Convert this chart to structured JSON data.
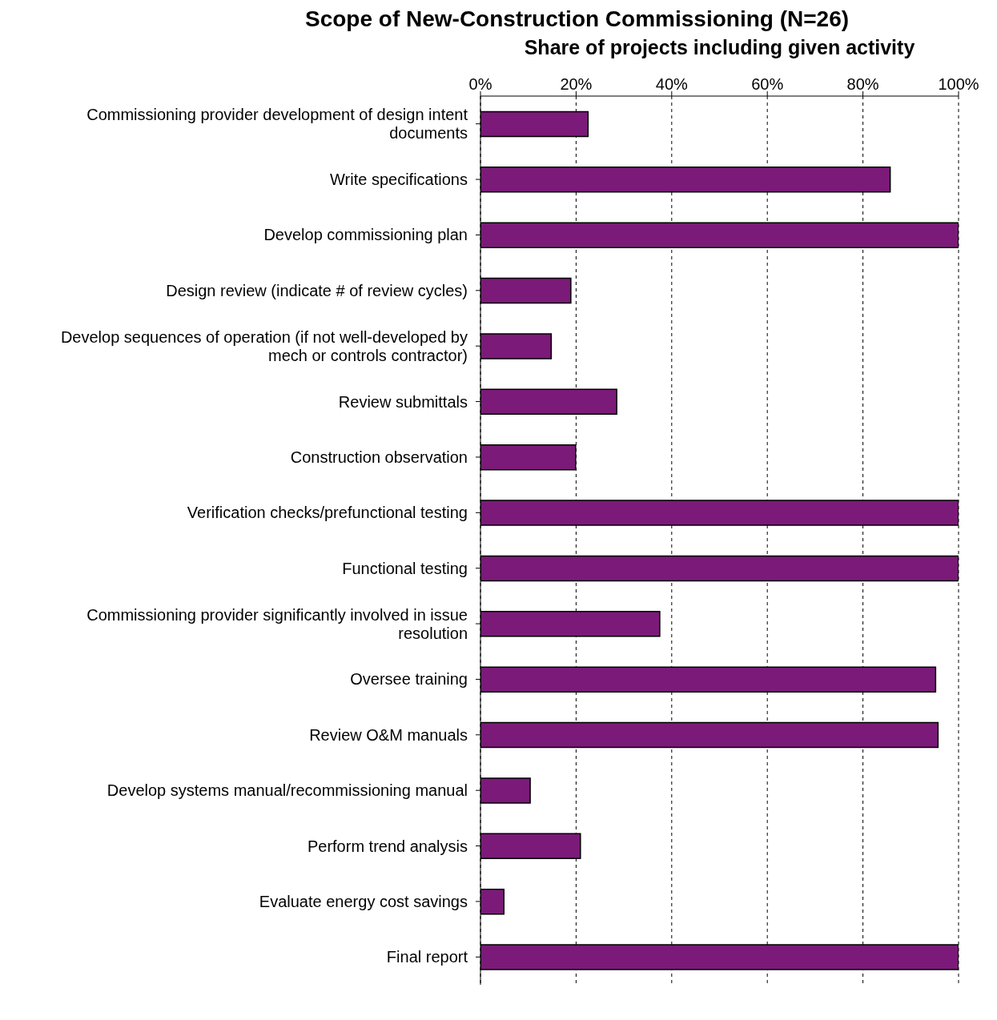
{
  "chart_data": {
    "type": "bar",
    "orientation": "horizontal",
    "title": "Scope of New-Construction Commissioning (N=26)",
    "xlabel": "Share of projects including given activity",
    "categories": [
      "Commissioning provider development of design intent documents",
      "Write specifications",
      "Develop commissioning plan",
      "Design review (indicate # of review cycles)",
      "Develop sequences of operation (if not well-developed by mech or controls contractor)",
      "Review submittals",
      "Construction observation",
      "Verification checks/prefunctional testing",
      "Functional testing",
      "Commissioning provider significantly involved in issue resolution",
      "Oversee training",
      "Review O&M manuals",
      "Develop systems manual/recommissioning manual",
      "Perform trend analysis",
      "Evaluate energy cost savings",
      "Final report"
    ],
    "values": [
      22.5,
      85.7,
      100,
      18.9,
      14.8,
      28.5,
      19.9,
      100,
      100,
      37.5,
      95.2,
      95.7,
      10.4,
      20.9,
      4.9,
      100
    ],
    "color": "#7b1a78",
    "xlim": [
      0,
      100
    ],
    "xticks": [
      {
        "value": 0,
        "label": "0%"
      },
      {
        "value": 20,
        "label": "20%"
      },
      {
        "value": 40,
        "label": "40%"
      },
      {
        "value": 60,
        "label": "60%"
      },
      {
        "value": 80,
        "label": "80%"
      },
      {
        "value": 100,
        "label": "100%"
      }
    ],
    "grid": "x"
  }
}
